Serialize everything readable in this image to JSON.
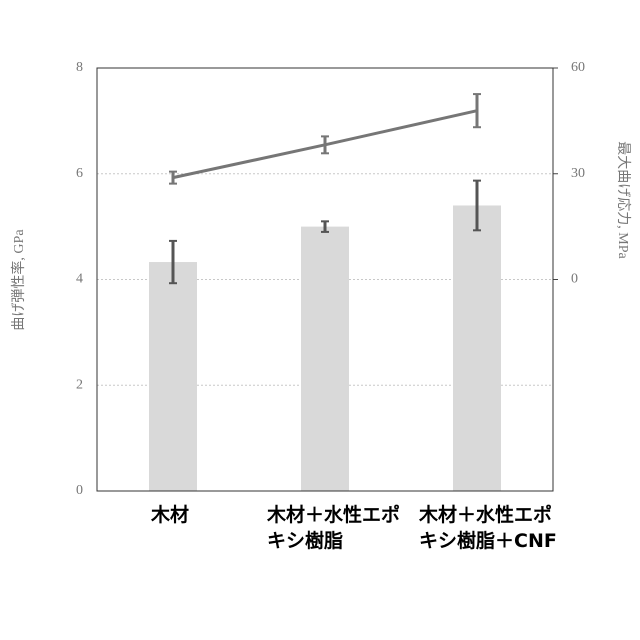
{
  "chart_data": {
    "type": "bar",
    "y_label": "曲げ弾性率, GPa",
    "y2_label": "最大曲げ応力, MPa",
    "categories": [
      "木材",
      "木材＋水性エポキシ樹脂",
      "木材＋水性エポキシ樹脂＋CNF"
    ],
    "series": [
      {
        "type": "bar",
        "color": "#d9d9d9",
        "values": [
          4.33,
          5.0,
          5.4
        ],
        "errors": [
          0.4,
          0.1,
          0.47
        ]
      },
      {
        "type": "line",
        "axis": "y2",
        "color": "#767676",
        "values": [
          28.9,
          38.2,
          47.9
        ],
        "errors": [
          1.7,
          2.4,
          4.7
        ]
      }
    ],
    "ylim": [
      0,
      8
    ],
    "yticks": [
      0,
      2,
      4,
      6,
      8
    ],
    "y2lim": [
      -60,
      60
    ],
    "y2ticks": [
      0,
      30,
      60
    ],
    "grid": true
  }
}
